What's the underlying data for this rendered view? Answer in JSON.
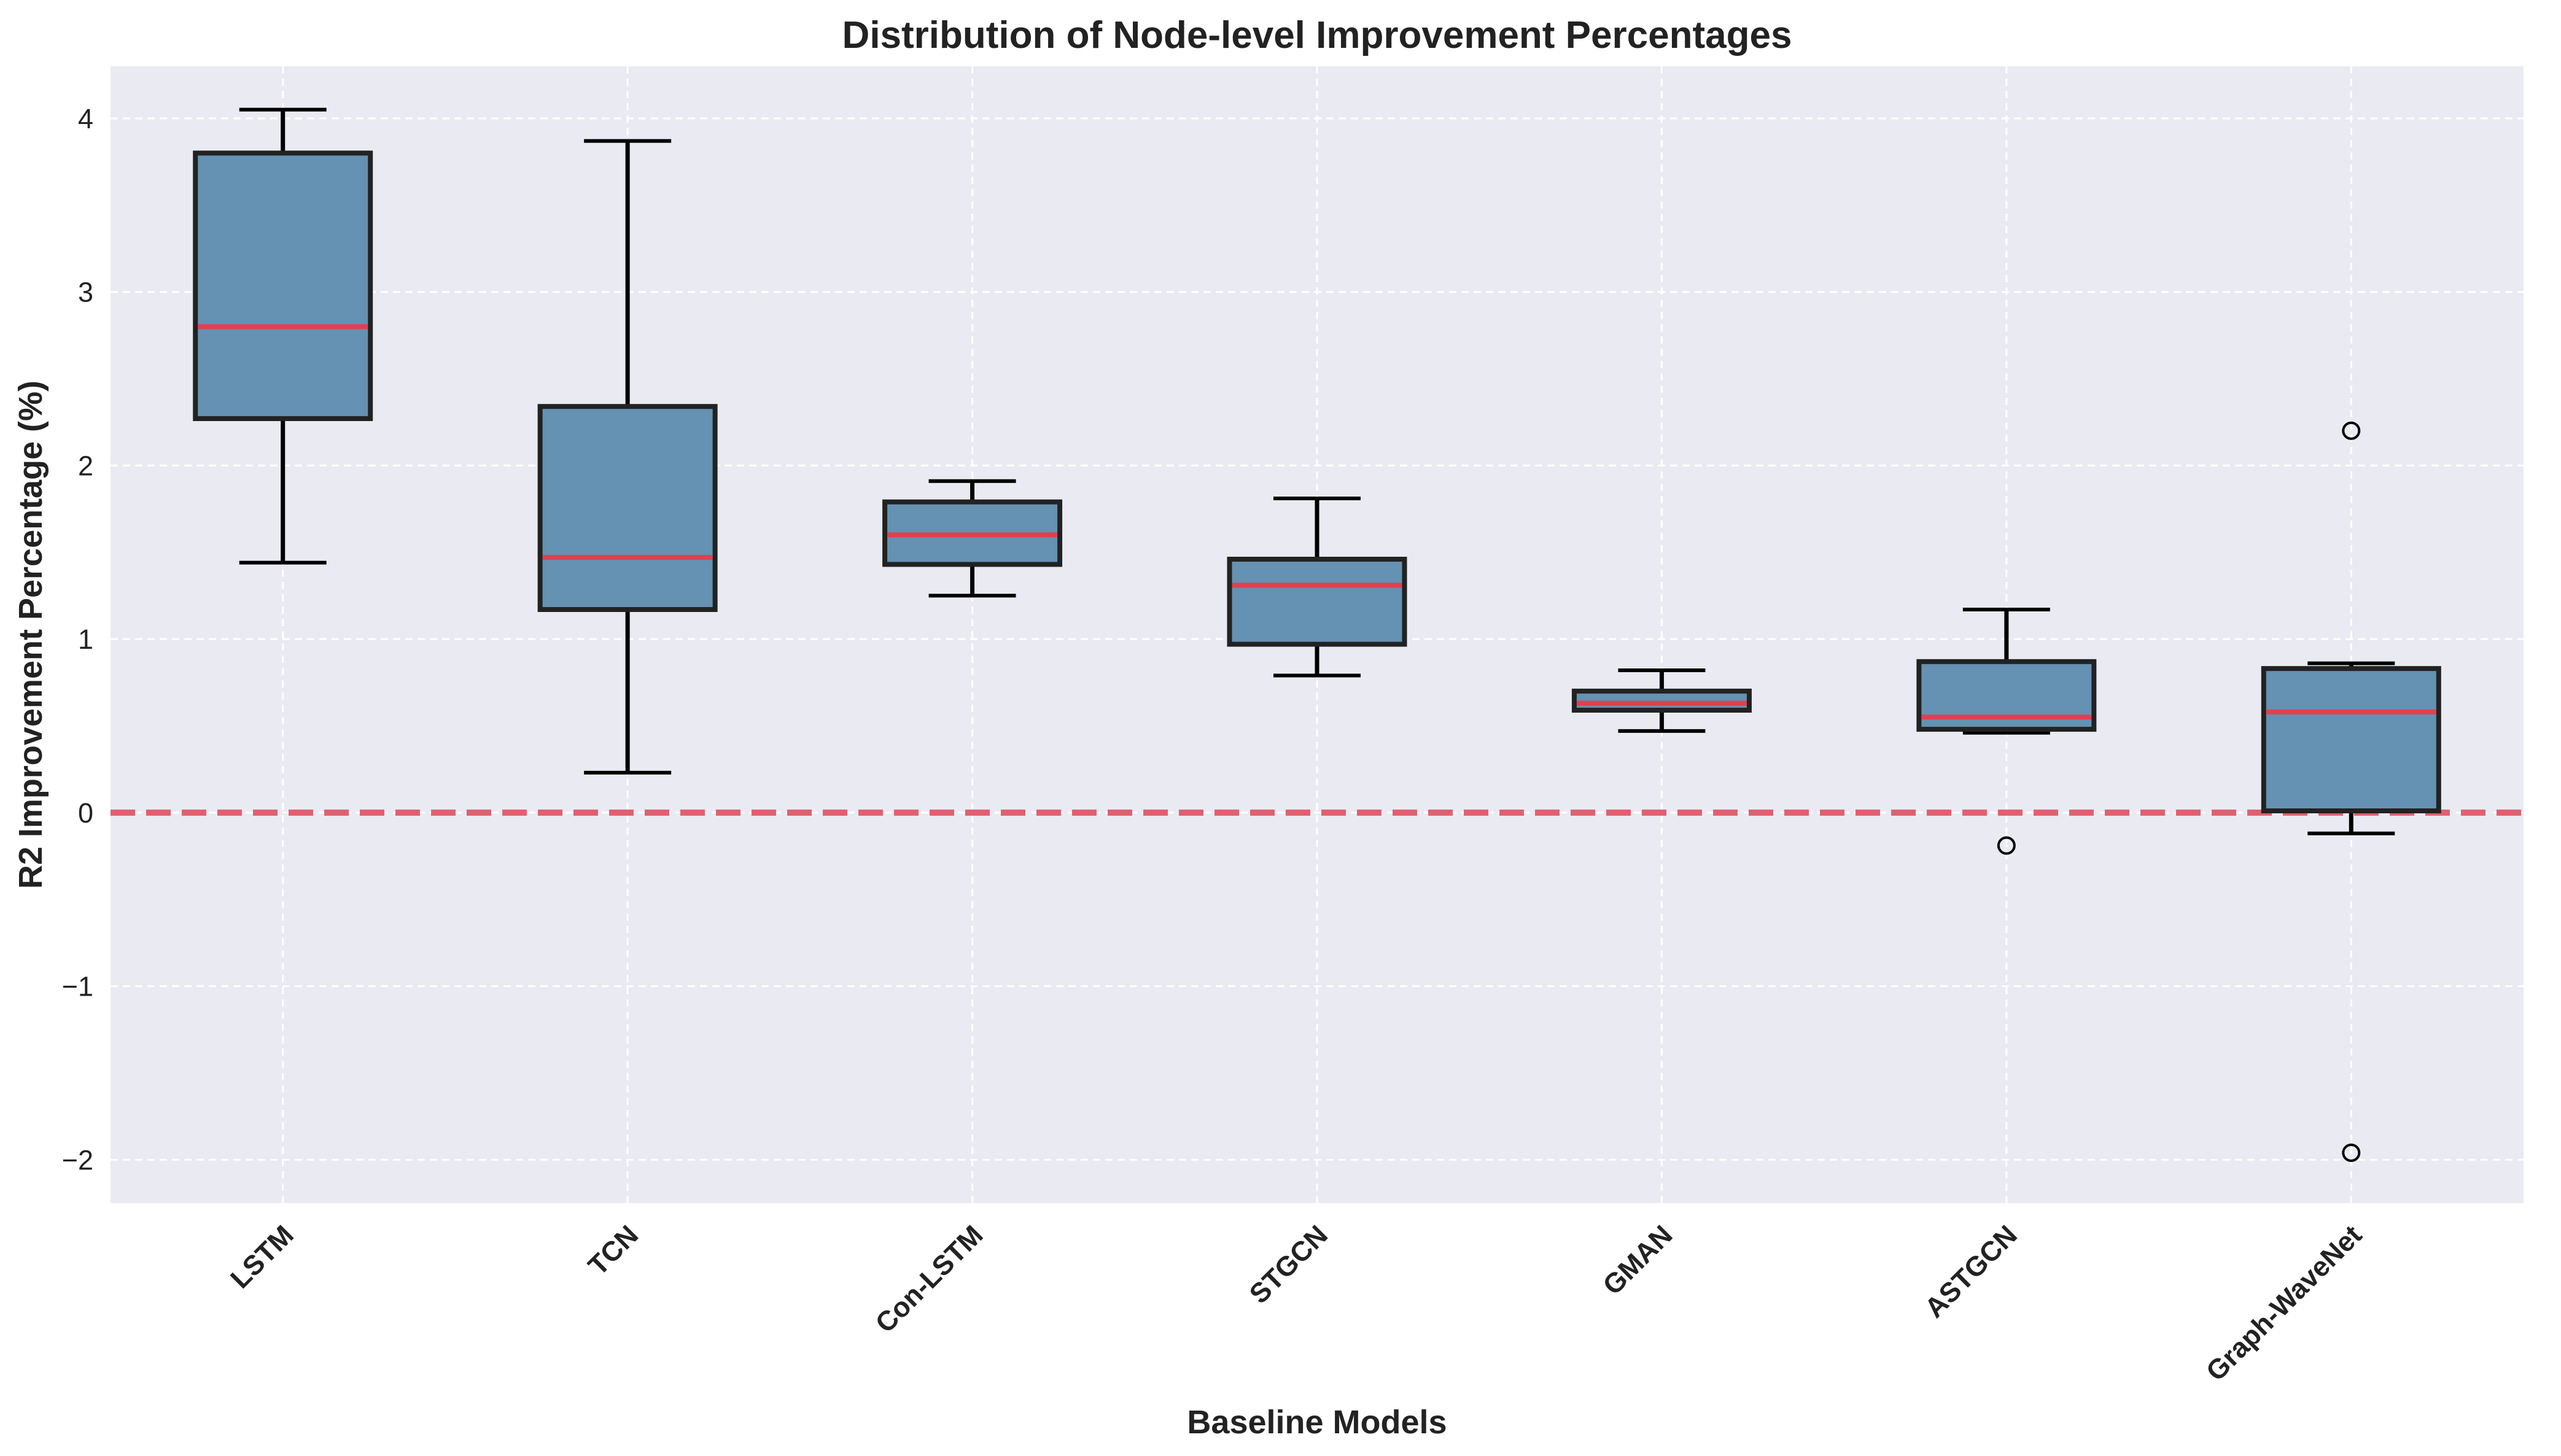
{
  "chart_data": {
    "type": "box",
    "title": "Distribution of Node-level Improvement Percentages",
    "xlabel": "Baseline Models",
    "ylabel": "R2 Improvement Percentage (%)",
    "ylim": [
      -2.25,
      4.3
    ],
    "yticks": [
      -2,
      -1,
      0,
      1,
      2,
      3,
      4
    ],
    "ytick_labels": [
      "−2",
      "−1",
      "0",
      "1",
      "2",
      "3",
      "4"
    ],
    "grid": true,
    "reference_line": {
      "y": 0,
      "style": "dashed",
      "color": "#e06070"
    },
    "colors": {
      "background": "#eaeaf2",
      "box_fill": "#6591b2",
      "box_edge": "#222222",
      "median": "#e0404f",
      "whisker": "#000000",
      "grid": "#ffffff"
    },
    "categories": [
      "LSTM",
      "TCN",
      "Con-LSTM",
      "STGCN",
      "GMAN",
      "ASTGCN",
      "Graph-WaveNet"
    ],
    "boxes": [
      {
        "label": "LSTM",
        "whislo": 1.44,
        "q1": 2.27,
        "med": 2.8,
        "q3": 3.8,
        "whishi": 4.05,
        "fliers": []
      },
      {
        "label": "TCN",
        "whislo": 0.23,
        "q1": 1.17,
        "med": 1.47,
        "q3": 2.34,
        "whishi": 3.87,
        "fliers": []
      },
      {
        "label": "Con-LSTM",
        "whislo": 1.25,
        "q1": 1.43,
        "med": 1.6,
        "q3": 1.79,
        "whishi": 1.91,
        "fliers": []
      },
      {
        "label": "STGCN",
        "whislo": 0.79,
        "q1": 0.97,
        "med": 1.31,
        "q3": 1.46,
        "whishi": 1.81,
        "fliers": []
      },
      {
        "label": "GMAN",
        "whislo": 0.47,
        "q1": 0.59,
        "med": 0.63,
        "q3": 0.7,
        "whishi": 0.82,
        "fliers": []
      },
      {
        "label": "ASTGCN",
        "whislo": 0.46,
        "q1": 0.48,
        "med": 0.55,
        "q3": 0.87,
        "whishi": 1.17,
        "fliers": [
          -0.19
        ]
      },
      {
        "label": "Graph-WaveNet",
        "whislo": -0.12,
        "q1": 0.01,
        "med": 0.58,
        "q3": 0.83,
        "whishi": 0.86,
        "fliers": [
          2.2,
          -1.96
        ]
      }
    ]
  }
}
